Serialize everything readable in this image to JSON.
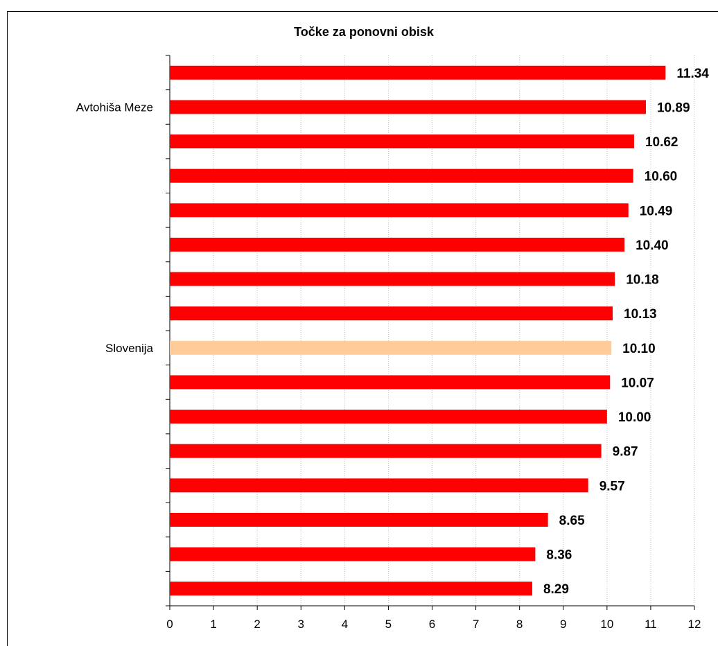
{
  "chart_data": {
    "type": "bar",
    "orientation": "horizontal",
    "title": "Točke za ponovni obisk",
    "xlabel": "",
    "ylabel": "",
    "xlim": [
      0,
      12
    ],
    "x_ticks": [
      "0",
      "1",
      "2",
      "3",
      "4",
      "5",
      "6",
      "7",
      "8",
      "9",
      "10",
      "11",
      "12"
    ],
    "grid": "vertical dotted",
    "legend": "none",
    "categories": [
      "",
      "Avtohiša Meze",
      "",
      "",
      "",
      "",
      "",
      "",
      "Slovenija",
      "",
      "",
      "",
      "",
      "",
      "",
      ""
    ],
    "values": [
      11.34,
      10.89,
      10.62,
      10.6,
      10.49,
      10.4,
      10.18,
      10.13,
      10.1,
      10.07,
      10.0,
      9.87,
      9.57,
      8.65,
      8.36,
      8.29
    ],
    "value_labels": [
      "11.34",
      "10.89",
      "10.62",
      "10.60",
      "10.49",
      "10.40",
      "10.18",
      "10.13",
      "10.10",
      "10.07",
      "10.00",
      "9.87",
      "9.57",
      "8.65",
      "8.36",
      "8.29"
    ],
    "colors": {
      "bar": "#ff0000",
      "highlight": "#ffcc99",
      "axis": "#000000",
      "grid": "#c0c0c0",
      "frame": "#000000"
    },
    "highlight_category": "Slovenija"
  }
}
